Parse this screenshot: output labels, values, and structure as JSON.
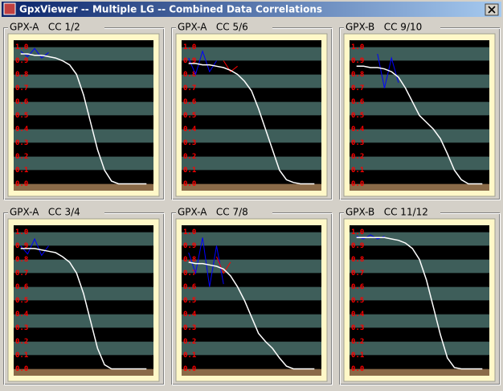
{
  "window": {
    "title": "GpxViewer -- Multiple LG -- Combined Data Correlations"
  },
  "chart_data": [
    {
      "type": "line",
      "title": "GPX-A   CC 1/2",
      "ylim": [
        -0.05,
        1.05
      ],
      "yticks": [
        {
          "value": 0,
          "label": "0.0"
        },
        0.1,
        0.2,
        0.3,
        0.4,
        0.5,
        0.6,
        0.7,
        0.8,
        0.9,
        {
          "value": 1,
          "label": "1.0"
        }
      ],
      "x": [
        0.05,
        0.1,
        0.15,
        0.2,
        0.25,
        0.3,
        0.35,
        0.4,
        0.45,
        0.5,
        0.55,
        0.6,
        0.65,
        0.7,
        0.75,
        0.8,
        0.85,
        0.9,
        0.95
      ],
      "series": [
        {
          "color": "#0000ff",
          "values": [
            0.97,
            0.93,
            0.99,
            0.92,
            0.96,
            null,
            null,
            null,
            null,
            null,
            null,
            null,
            null,
            null,
            null,
            null,
            null,
            null,
            null
          ]
        },
        {
          "color": "#ffffff",
          "values": [
            0.95,
            0.95,
            0.94,
            0.94,
            0.93,
            0.92,
            0.9,
            0.87,
            0.8,
            0.65,
            0.45,
            0.25,
            0.1,
            0.02,
            0,
            0,
            0,
            0,
            0
          ]
        }
      ]
    },
    {
      "type": "line",
      "title": "GPX-A   CC 5/6",
      "ylim": [
        -0.05,
        1.05
      ],
      "yticks": [
        {
          "value": 0,
          "label": "0.0"
        },
        0.1,
        0.2,
        0.3,
        0.4,
        0.5,
        0.6,
        0.7,
        0.8,
        0.9,
        {
          "value": 1,
          "label": "1.0"
        }
      ],
      "x": [
        0.05,
        0.1,
        0.15,
        0.2,
        0.25,
        0.3,
        0.35,
        0.4,
        0.45,
        0.5,
        0.55,
        0.6,
        0.65,
        0.7,
        0.75,
        0.8,
        0.85,
        0.9,
        0.95
      ],
      "series": [
        {
          "color": "#0000ff",
          "values": [
            0.92,
            0.8,
            0.97,
            0.82,
            0.9,
            null,
            null,
            null,
            null,
            null,
            null,
            null,
            null,
            null,
            null,
            null,
            null,
            null,
            null
          ]
        },
        {
          "color": "#ff0000",
          "values": [
            null,
            null,
            null,
            null,
            null,
            0.9,
            0.82,
            0.86,
            null,
            null,
            null,
            null,
            null,
            null,
            null,
            null,
            null,
            null,
            null
          ]
        },
        {
          "color": "#ffffff",
          "values": [
            0.88,
            0.88,
            0.87,
            0.87,
            0.86,
            0.85,
            0.83,
            0.8,
            0.75,
            0.68,
            0.55,
            0.4,
            0.25,
            0.1,
            0.03,
            0.01,
            0,
            0,
            0
          ]
        }
      ]
    },
    {
      "type": "line",
      "title": "GPX-B   CC 9/10",
      "ylim": [
        -0.05,
        1.05
      ],
      "yticks": [
        {
          "value": 0,
          "label": "0.0"
        },
        0.1,
        0.2,
        0.3,
        0.4,
        0.5,
        0.6,
        0.7,
        0.8,
        0.9,
        {
          "value": 1,
          "label": "1.0"
        }
      ],
      "x": [
        0.05,
        0.1,
        0.15,
        0.2,
        0.25,
        0.3,
        0.35,
        0.4,
        0.45,
        0.5,
        0.55,
        0.6,
        0.65,
        0.7,
        0.75,
        0.8,
        0.85,
        0.9,
        0.95
      ],
      "series": [
        {
          "color": "#0000ff",
          "values": [
            null,
            null,
            null,
            0.95,
            0.7,
            0.92,
            0.74,
            null,
            null,
            null,
            null,
            null,
            null,
            null,
            null,
            null,
            null,
            null,
            null
          ]
        },
        {
          "color": "#ffffff",
          "values": [
            0.86,
            0.86,
            0.85,
            0.85,
            0.84,
            0.82,
            0.78,
            0.7,
            0.6,
            0.5,
            0.45,
            0.4,
            0.33,
            0.22,
            0.1,
            0.03,
            0,
            0,
            0
          ]
        }
      ]
    },
    {
      "type": "line",
      "title": "GPX-A   CC 3/4",
      "ylim": [
        -0.05,
        1.05
      ],
      "yticks": [
        {
          "value": 0,
          "label": "0.0"
        },
        0.1,
        0.2,
        0.3,
        0.4,
        0.5,
        0.6,
        0.7,
        0.8,
        0.9,
        {
          "value": 1,
          "label": "1.0"
        }
      ],
      "x": [
        0.05,
        0.1,
        0.15,
        0.2,
        0.25,
        0.3,
        0.35,
        0.4,
        0.45,
        0.5,
        0.55,
        0.6,
        0.65,
        0.7,
        0.75,
        0.8,
        0.85,
        0.9,
        0.95
      ],
      "series": [
        {
          "color": "#0000ff",
          "values": [
            0.9,
            0.84,
            0.95,
            0.83,
            0.9,
            null,
            null,
            null,
            null,
            null,
            null,
            null,
            null,
            null,
            null,
            null,
            null,
            null,
            null
          ]
        },
        {
          "color": "#ffffff",
          "values": [
            0.88,
            0.88,
            0.88,
            0.87,
            0.86,
            0.85,
            0.82,
            0.78,
            0.7,
            0.55,
            0.35,
            0.15,
            0.03,
            0,
            0,
            0,
            0,
            0,
            0
          ]
        }
      ]
    },
    {
      "type": "line",
      "title": "GPX-A   CC 7/8",
      "ylim": [
        -0.05,
        1.05
      ],
      "yticks": [
        {
          "value": 0,
          "label": "0.0"
        },
        0.1,
        0.2,
        0.3,
        0.4,
        0.5,
        0.6,
        0.7,
        0.8,
        0.9,
        {
          "value": 1,
          "label": "1.0"
        }
      ],
      "x": [
        0.05,
        0.1,
        0.15,
        0.2,
        0.25,
        0.3,
        0.35,
        0.4,
        0.45,
        0.5,
        0.55,
        0.6,
        0.65,
        0.7,
        0.75,
        0.8,
        0.85,
        0.9,
        0.95
      ],
      "series": [
        {
          "color": "#0000ff",
          "values": [
            0.85,
            0.7,
            0.96,
            0.6,
            0.9,
            0.62,
            null,
            null,
            null,
            null,
            null,
            null,
            null,
            null,
            null,
            null,
            null,
            null,
            null
          ]
        },
        {
          "color": "#ff0000",
          "values": [
            null,
            null,
            null,
            null,
            0.82,
            0.7,
            0.78,
            null,
            null,
            null,
            null,
            null,
            null,
            null,
            null,
            null,
            null,
            null,
            null
          ]
        },
        {
          "color": "#ffffff",
          "values": [
            0.78,
            0.77,
            0.77,
            0.76,
            0.75,
            0.73,
            0.68,
            0.6,
            0.5,
            0.38,
            0.26,
            0.2,
            0.15,
            0.08,
            0.02,
            0,
            0,
            0,
            0
          ]
        }
      ]
    },
    {
      "type": "line",
      "title": "GPX-B   CC 11/12",
      "ylim": [
        -0.05,
        1.05
      ],
      "yticks": [
        {
          "value": 0,
          "label": "0.0"
        },
        0.1,
        0.2,
        0.3,
        0.4,
        0.5,
        0.6,
        0.7,
        0.8,
        0.9,
        {
          "value": 1,
          "label": "1.0"
        }
      ],
      "x": [
        0.05,
        0.1,
        0.15,
        0.2,
        0.25,
        0.3,
        0.35,
        0.4,
        0.45,
        0.5,
        0.55,
        0.6,
        0.65,
        0.7,
        0.75,
        0.8,
        0.85,
        0.9,
        0.95
      ],
      "series": [
        {
          "color": "#0000ff",
          "values": [
            0.97,
            0.95,
            0.98,
            0.95,
            0.97,
            null,
            null,
            null,
            null,
            null,
            null,
            null,
            null,
            null,
            null,
            null,
            null,
            null,
            null
          ]
        },
        {
          "color": "#ffffff",
          "values": [
            0.96,
            0.96,
            0.96,
            0.96,
            0.96,
            0.95,
            0.94,
            0.92,
            0.88,
            0.8,
            0.65,
            0.45,
            0.25,
            0.08,
            0.01,
            0,
            0,
            0,
            0
          ]
        }
      ]
    }
  ]
}
